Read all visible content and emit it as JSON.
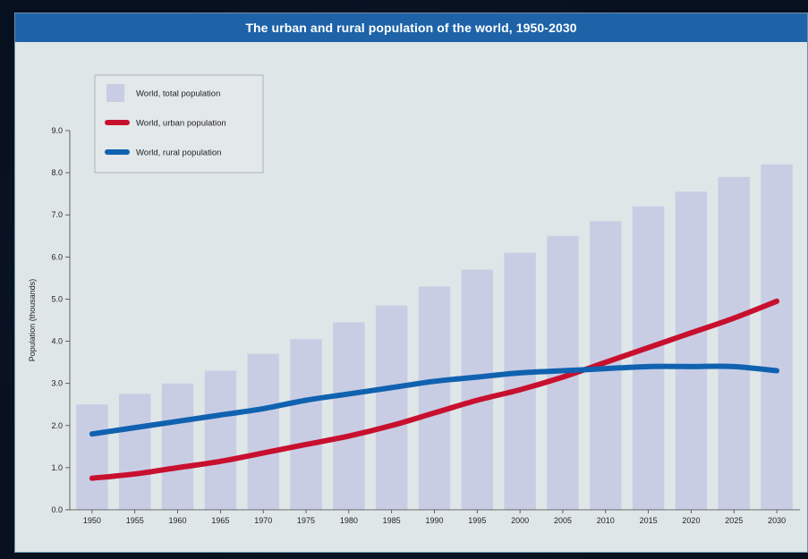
{
  "chart_data": {
    "type": "bar",
    "title": "The urban and rural population of the world, 1950-2030",
    "ylabel": "Population (thousands)",
    "xlabel": "",
    "categories": [
      "1950",
      "1955",
      "1960",
      "1965",
      "1970",
      "1975",
      "1980",
      "1985",
      "1990",
      "1995",
      "2000",
      "2005",
      "2010",
      "2015",
      "2020",
      "2025",
      "2030"
    ],
    "yticks": [
      "0.0",
      "1.0",
      "2.0",
      "3.0",
      "4.0",
      "5.0",
      "6.0",
      "7.0",
      "8.0",
      "9.0"
    ],
    "ylim": [
      0,
      9
    ],
    "grid": false,
    "legend_position": "top-left",
    "series": [
      {
        "name": "World, total population",
        "kind": "bar",
        "color": "#c8cde4",
        "values": [
          2.5,
          2.75,
          3.0,
          3.3,
          3.7,
          4.05,
          4.45,
          4.85,
          5.3,
          5.7,
          6.1,
          6.5,
          6.85,
          7.2,
          7.55,
          7.9,
          8.2
        ]
      },
      {
        "name": "World, urban population",
        "kind": "line",
        "color": "#c8102e",
        "values": [
          0.75,
          0.85,
          1.0,
          1.15,
          1.35,
          1.55,
          1.75,
          2.0,
          2.3,
          2.6,
          2.85,
          3.15,
          3.5,
          3.85,
          4.2,
          4.55,
          4.95
        ]
      },
      {
        "name": "World, rural population",
        "kind": "line",
        "color": "#1062b0",
        "values": [
          1.8,
          1.95,
          2.1,
          2.25,
          2.4,
          2.6,
          2.75,
          2.9,
          3.05,
          3.15,
          3.25,
          3.3,
          3.35,
          3.4,
          3.4,
          3.4,
          3.3
        ]
      }
    ]
  }
}
